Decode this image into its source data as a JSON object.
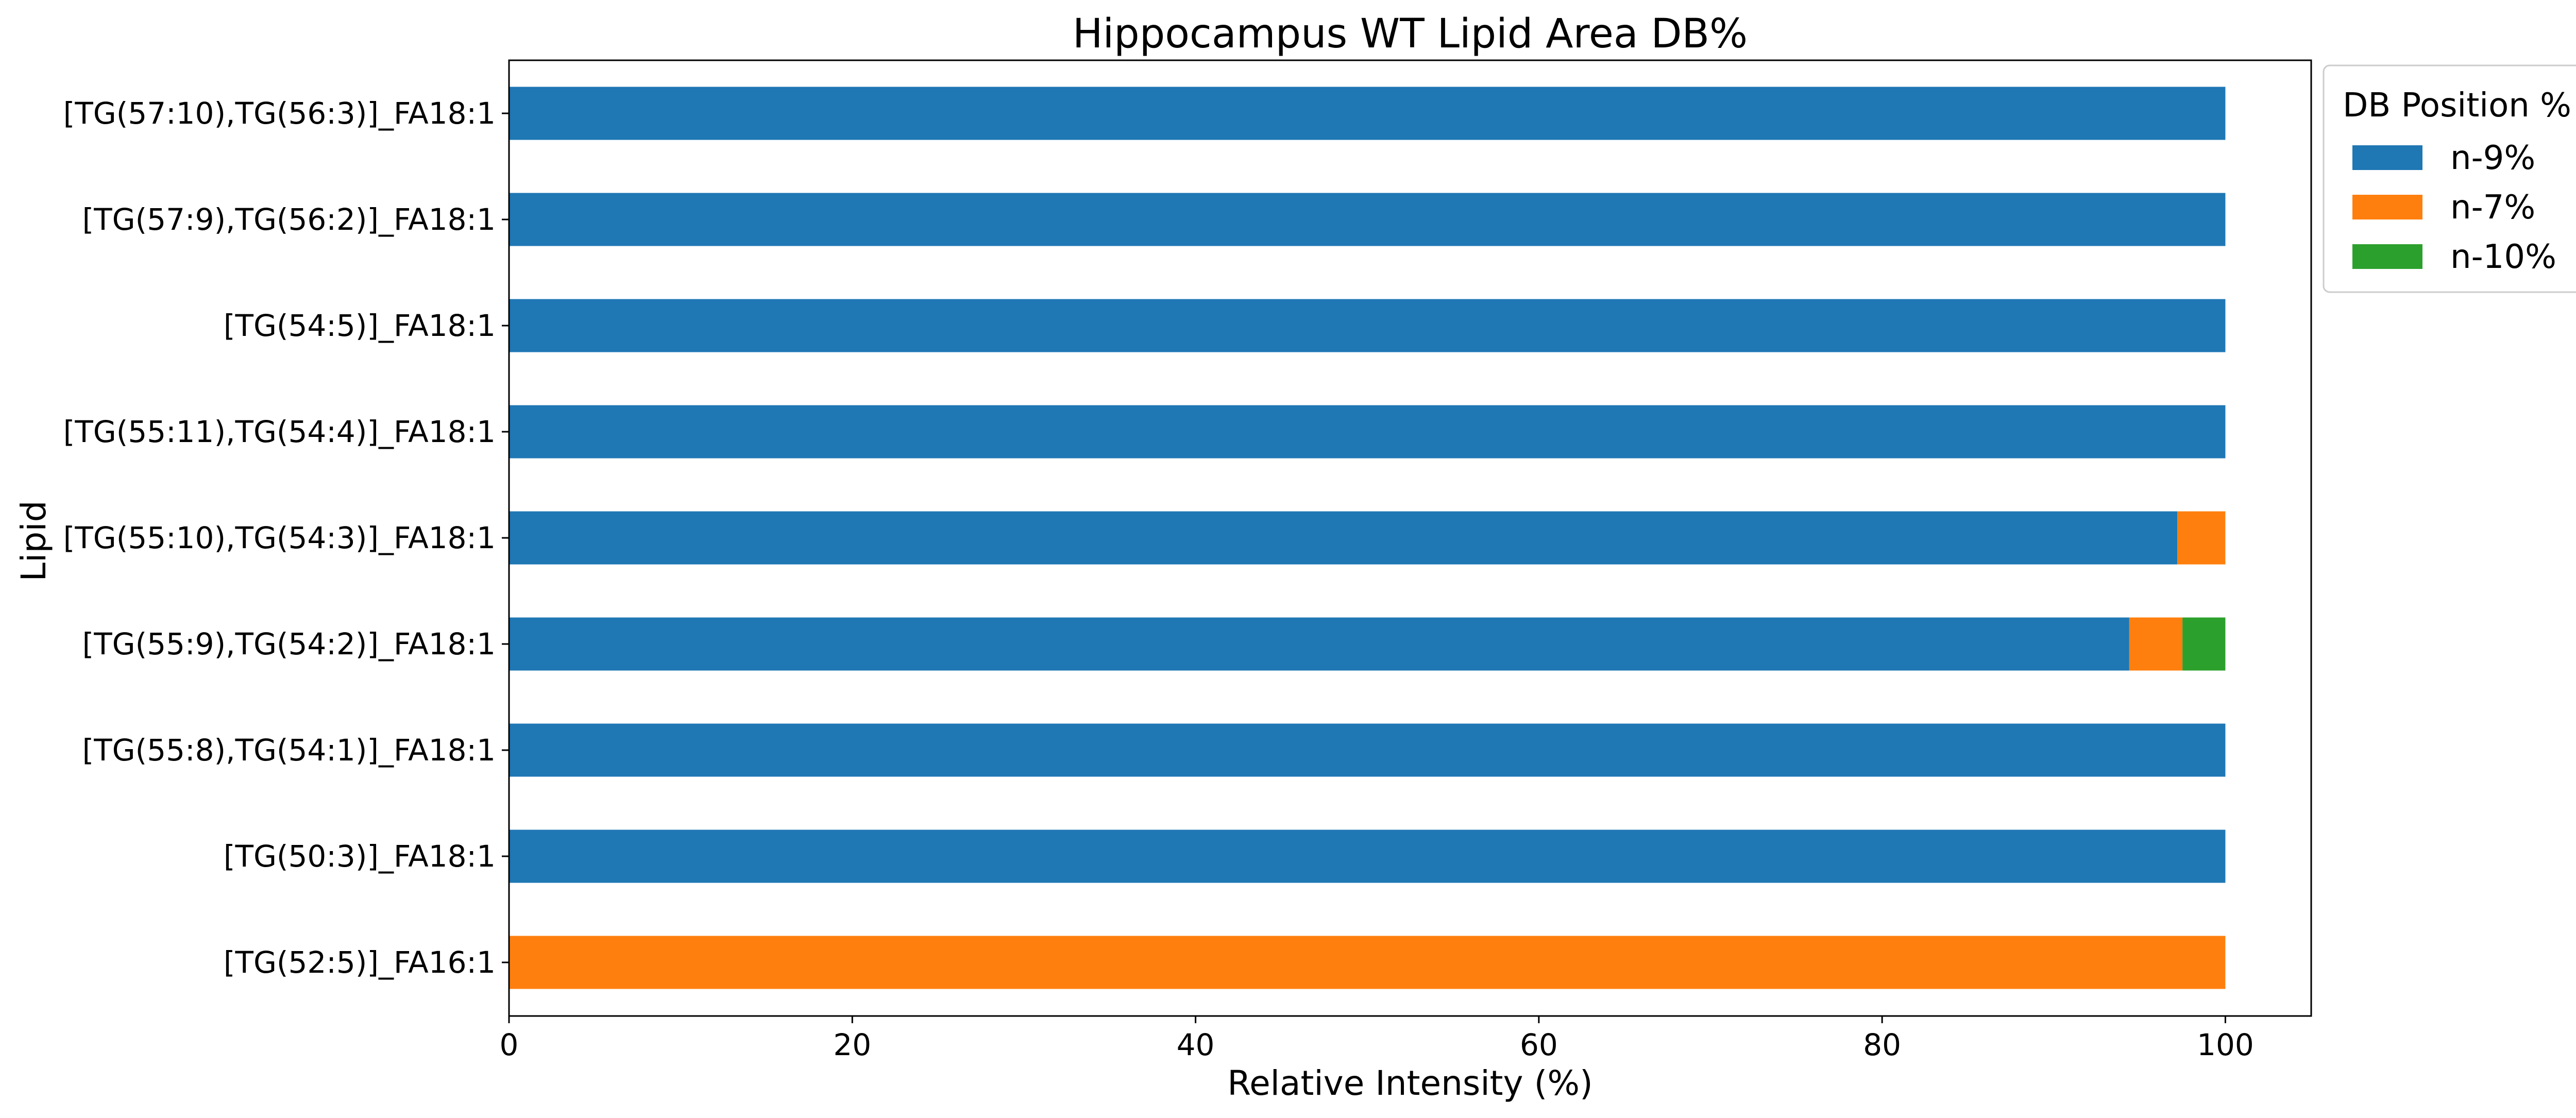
{
  "chart_data": {
    "type": "bar",
    "orientation": "horizontal",
    "stacked": true,
    "title": "Hippocampus WT Lipid Area DB%",
    "xlabel": "Relative Intensity (%)",
    "ylabel": "Lipid",
    "xlim": [
      0,
      105
    ],
    "xticks": [
      0,
      20,
      40,
      60,
      80,
      100
    ],
    "grid": false,
    "legend": {
      "title": "DB Position %",
      "placement": "outside-top-right"
    },
    "categories": [
      "[TG(57:10),TG(56:3)]_FA18:1",
      "[TG(57:9),TG(56:2)]_FA18:1",
      "[TG(54:5)]_FA18:1",
      "[TG(55:11),TG(54:4)]_FA18:1",
      "[TG(55:10),TG(54:3)]_FA18:1",
      "[TG(55:9),TG(54:2)]_FA18:1",
      "[TG(55:8),TG(54:1)]_FA18:1",
      "[TG(50:3)]_FA18:1",
      "[TG(52:5)]_FA16:1"
    ],
    "series": [
      {
        "name": "n-9%",
        "color": "#1f77b4",
        "values": [
          100,
          100,
          100,
          100,
          97.2,
          94.4,
          100,
          100,
          0
        ]
      },
      {
        "name": "n-7%",
        "color": "#ff7f0e",
        "values": [
          0,
          0,
          0,
          0,
          2.8,
          3.1,
          0,
          0,
          100
        ]
      },
      {
        "name": "n-10%",
        "color": "#2ca02c",
        "values": [
          0,
          0,
          0,
          0,
          0,
          2.5,
          0,
          0,
          0
        ]
      }
    ]
  }
}
